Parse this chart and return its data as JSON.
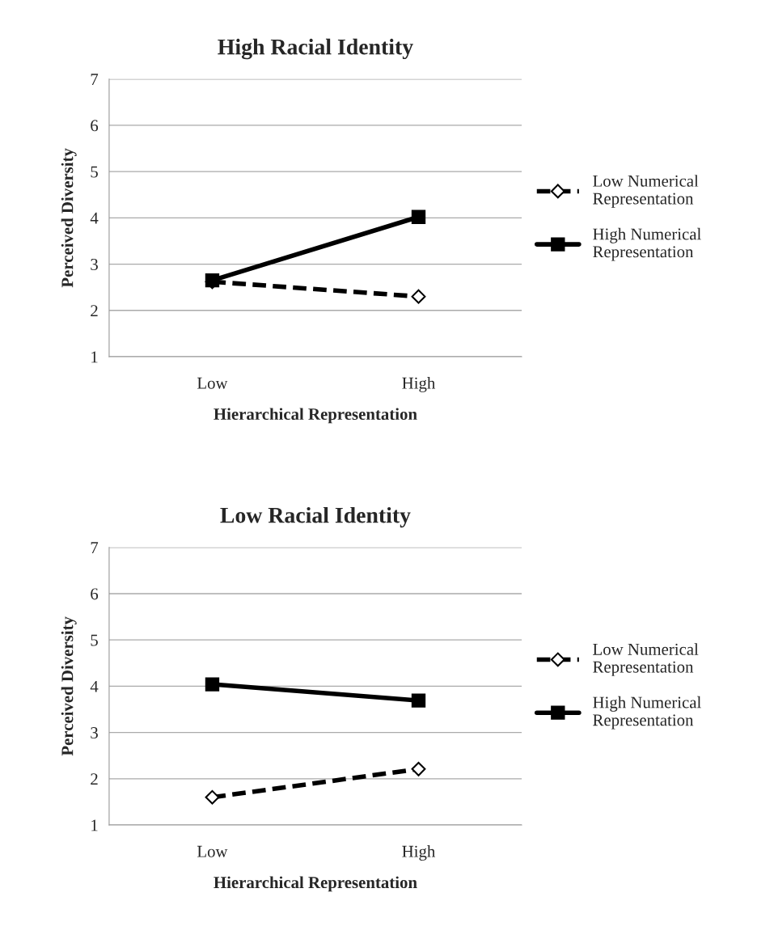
{
  "chart_data": [
    {
      "type": "line",
      "title": "High Racial Identity",
      "xlabel": "Hierarchical Representation",
      "ylabel": "Perceived Diversity",
      "categories": [
        "Low",
        "High"
      ],
      "series": [
        {
          "name": "Low Numerical Representation",
          "color": "#000000",
          "values": [
            2.62,
            2.3
          ],
          "marker": "diamond",
          "line_style": "dashed"
        },
        {
          "name": "High Numerical Representation",
          "color": "#000000",
          "values": [
            2.65,
            4.02
          ],
          "marker": "square",
          "line_style": "solid"
        }
      ],
      "ylim": [
        1,
        7
      ],
      "yticks": [
        1,
        2,
        3,
        4,
        5,
        6,
        7
      ],
      "grid": "y",
      "legend": "right"
    },
    {
      "type": "line",
      "title": "Low Racial Identity",
      "xlabel": "Hierarchical Representation",
      "ylabel": "Perceived Diversity",
      "categories": [
        "Low",
        "High"
      ],
      "series": [
        {
          "name": "Low Numerical Representation",
          "color": "#000000",
          "values": [
            1.6,
            2.21
          ],
          "marker": "diamond",
          "line_style": "dashed"
        },
        {
          "name": "High Numerical Representation",
          "color": "#000000",
          "values": [
            4.04,
            3.69
          ],
          "marker": "square",
          "line_style": "solid"
        }
      ],
      "ylim": [
        1,
        7
      ],
      "yticks": [
        1,
        2,
        3,
        4,
        5,
        6,
        7
      ],
      "grid": "y",
      "legend": "right"
    }
  ]
}
